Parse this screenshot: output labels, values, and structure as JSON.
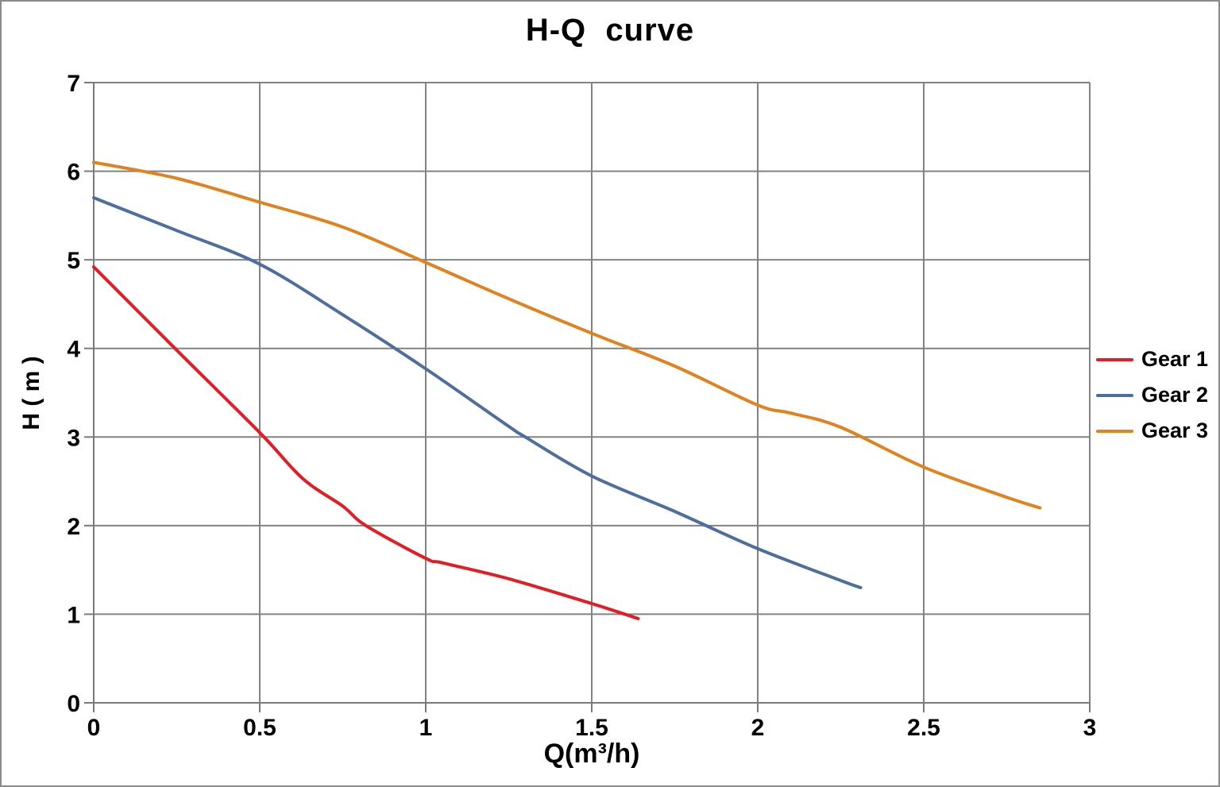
{
  "chart_data": {
    "type": "line",
    "title": "H-Q  curve",
    "xlabel": "Q(m³/h)",
    "ylabel": "H ( m )",
    "xlim": [
      0,
      3
    ],
    "ylim": [
      0,
      7
    ],
    "x_ticks": [
      0,
      0.5,
      1,
      1.5,
      2,
      2.5,
      3
    ],
    "x_tick_labels": [
      "0",
      "0.5",
      "1",
      "1.5",
      "2",
      "2.5",
      "3"
    ],
    "y_ticks": [
      0,
      1,
      2,
      3,
      4,
      5,
      6,
      7
    ],
    "y_tick_labels": [
      "0",
      "1",
      "2",
      "3",
      "4",
      "5",
      "6",
      "7"
    ],
    "grid": true,
    "legend_position": "right",
    "colors": {
      "grid": "#828282",
      "axis": "#7a7a7a",
      "text": "#000000",
      "frame": "#8a8a8a",
      "background": "#ffffff"
    },
    "series": [
      {
        "name": "Gear 1",
        "color": "#e21d24",
        "points": [
          [
            0,
            4.92
          ],
          [
            0.25,
            3.98
          ],
          [
            0.5,
            3.05
          ],
          [
            0.63,
            2.53
          ],
          [
            0.75,
            2.22
          ],
          [
            0.82,
            2.0
          ],
          [
            1.0,
            1.63
          ],
          [
            1.05,
            1.58
          ],
          [
            1.25,
            1.4
          ],
          [
            1.5,
            1.12
          ],
          [
            1.64,
            0.95
          ]
        ]
      },
      {
        "name": "Gear 2",
        "color": "#4e6f9d",
        "points": [
          [
            0,
            5.7
          ],
          [
            0.25,
            5.33
          ],
          [
            0.5,
            4.95
          ],
          [
            0.75,
            4.38
          ],
          [
            1.0,
            3.77
          ],
          [
            1.25,
            3.12
          ],
          [
            1.3,
            3.0
          ],
          [
            1.5,
            2.56
          ],
          [
            1.75,
            2.16
          ],
          [
            2.0,
            1.74
          ],
          [
            2.25,
            1.38
          ],
          [
            2.31,
            1.3
          ]
        ]
      },
      {
        "name": "Gear 3",
        "color": "#e0821f",
        "points": [
          [
            0,
            6.1
          ],
          [
            0.25,
            5.92
          ],
          [
            0.5,
            5.65
          ],
          [
            0.75,
            5.37
          ],
          [
            1.0,
            4.97
          ],
          [
            1.25,
            4.56
          ],
          [
            1.5,
            4.17
          ],
          [
            1.75,
            3.8
          ],
          [
            2.0,
            3.36
          ],
          [
            2.1,
            3.27
          ],
          [
            2.25,
            3.11
          ],
          [
            2.5,
            2.66
          ],
          [
            2.75,
            2.32
          ],
          [
            2.85,
            2.2
          ]
        ]
      }
    ]
  }
}
